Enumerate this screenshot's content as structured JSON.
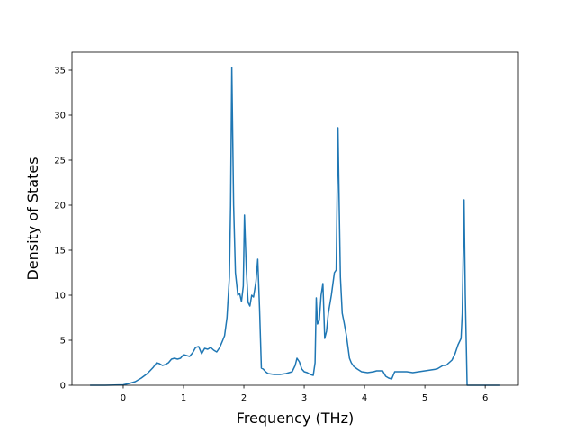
{
  "chart_data": {
    "type": "line",
    "title": "",
    "xlabel": "Frequency (THz)",
    "ylabel": "Density of States",
    "xlim": [
      -0.85,
      6.55
    ],
    "ylim": [
      0,
      37
    ],
    "xticks": [
      0,
      1,
      2,
      3,
      4,
      5,
      6
    ],
    "yticks": [
      0,
      5,
      10,
      15,
      20,
      25,
      30,
      35
    ],
    "grid": false,
    "legend": "none",
    "colors": {
      "line": "#1f77b4",
      "axes": "#000000",
      "background": "#ffffff"
    },
    "series": [
      {
        "x": [
          -0.55,
          -0.3,
          0.0,
          0.1,
          0.2,
          0.3,
          0.4,
          0.5,
          0.55,
          0.6,
          0.65,
          0.7,
          0.75,
          0.8,
          0.85,
          0.9,
          0.95,
          1.0,
          1.05,
          1.1,
          1.15,
          1.2,
          1.25,
          1.3,
          1.35,
          1.4,
          1.45,
          1.5,
          1.55,
          1.6,
          1.65,
          1.68,
          1.72,
          1.76,
          1.78,
          1.8,
          1.83,
          1.86,
          1.9,
          1.93,
          1.96,
          1.99,
          2.01,
          2.04,
          2.07,
          2.1,
          2.13,
          2.16,
          2.2,
          2.23,
          2.26,
          2.29,
          2.32,
          2.36,
          2.4,
          2.45,
          2.5,
          2.6,
          2.7,
          2.8,
          2.85,
          2.88,
          2.92,
          2.96,
          3.0,
          3.05,
          3.1,
          3.15,
          3.18,
          3.2,
          3.22,
          3.25,
          3.28,
          3.31,
          3.34,
          3.37,
          3.4,
          3.45,
          3.5,
          3.53,
          3.56,
          3.58,
          3.6,
          3.63,
          3.66,
          3.7,
          3.75,
          3.78,
          3.82,
          3.88,
          3.95,
          4.05,
          4.15,
          4.2,
          4.3,
          4.35,
          4.4,
          4.45,
          4.5,
          4.6,
          4.7,
          4.8,
          4.9,
          5.0,
          5.1,
          5.2,
          5.3,
          5.35,
          5.4,
          5.45,
          5.5,
          5.55,
          5.6,
          5.62,
          5.65,
          5.67,
          5.7,
          6.0,
          6.25
        ],
        "y": [
          0,
          0,
          0.05,
          0.2,
          0.4,
          0.8,
          1.3,
          2.0,
          2.5,
          2.4,
          2.2,
          2.3,
          2.5,
          2.9,
          3.0,
          2.9,
          3.0,
          3.4,
          3.3,
          3.2,
          3.6,
          4.2,
          4.3,
          3.5,
          4.1,
          4.0,
          4.2,
          3.9,
          3.7,
          4.2,
          5.0,
          5.5,
          7.5,
          12.0,
          20.0,
          35.3,
          20.0,
          12.5,
          10.0,
          10.2,
          9.3,
          11.0,
          18.9,
          13.0,
          9.2,
          8.8,
          10.0,
          9.8,
          11.5,
          14.0,
          8.5,
          1.9,
          1.8,
          1.5,
          1.3,
          1.25,
          1.2,
          1.2,
          1.3,
          1.5,
          2.2,
          3.0,
          2.6,
          1.8,
          1.5,
          1.4,
          1.2,
          1.1,
          2.5,
          9.7,
          6.8,
          7.2,
          10.0,
          11.3,
          5.2,
          6.0,
          8.0,
          10.0,
          12.5,
          12.8,
          28.6,
          20.0,
          12.0,
          8.0,
          7.0,
          5.5,
          3.0,
          2.5,
          2.1,
          1.8,
          1.5,
          1.4,
          1.5,
          1.6,
          1.6,
          1.0,
          0.8,
          0.7,
          1.5,
          1.5,
          1.5,
          1.4,
          1.5,
          1.6,
          1.7,
          1.8,
          2.2,
          2.2,
          2.5,
          2.8,
          3.5,
          4.5,
          5.2,
          8.0,
          20.6,
          10.0,
          0,
          0,
          0
        ]
      }
    ]
  }
}
